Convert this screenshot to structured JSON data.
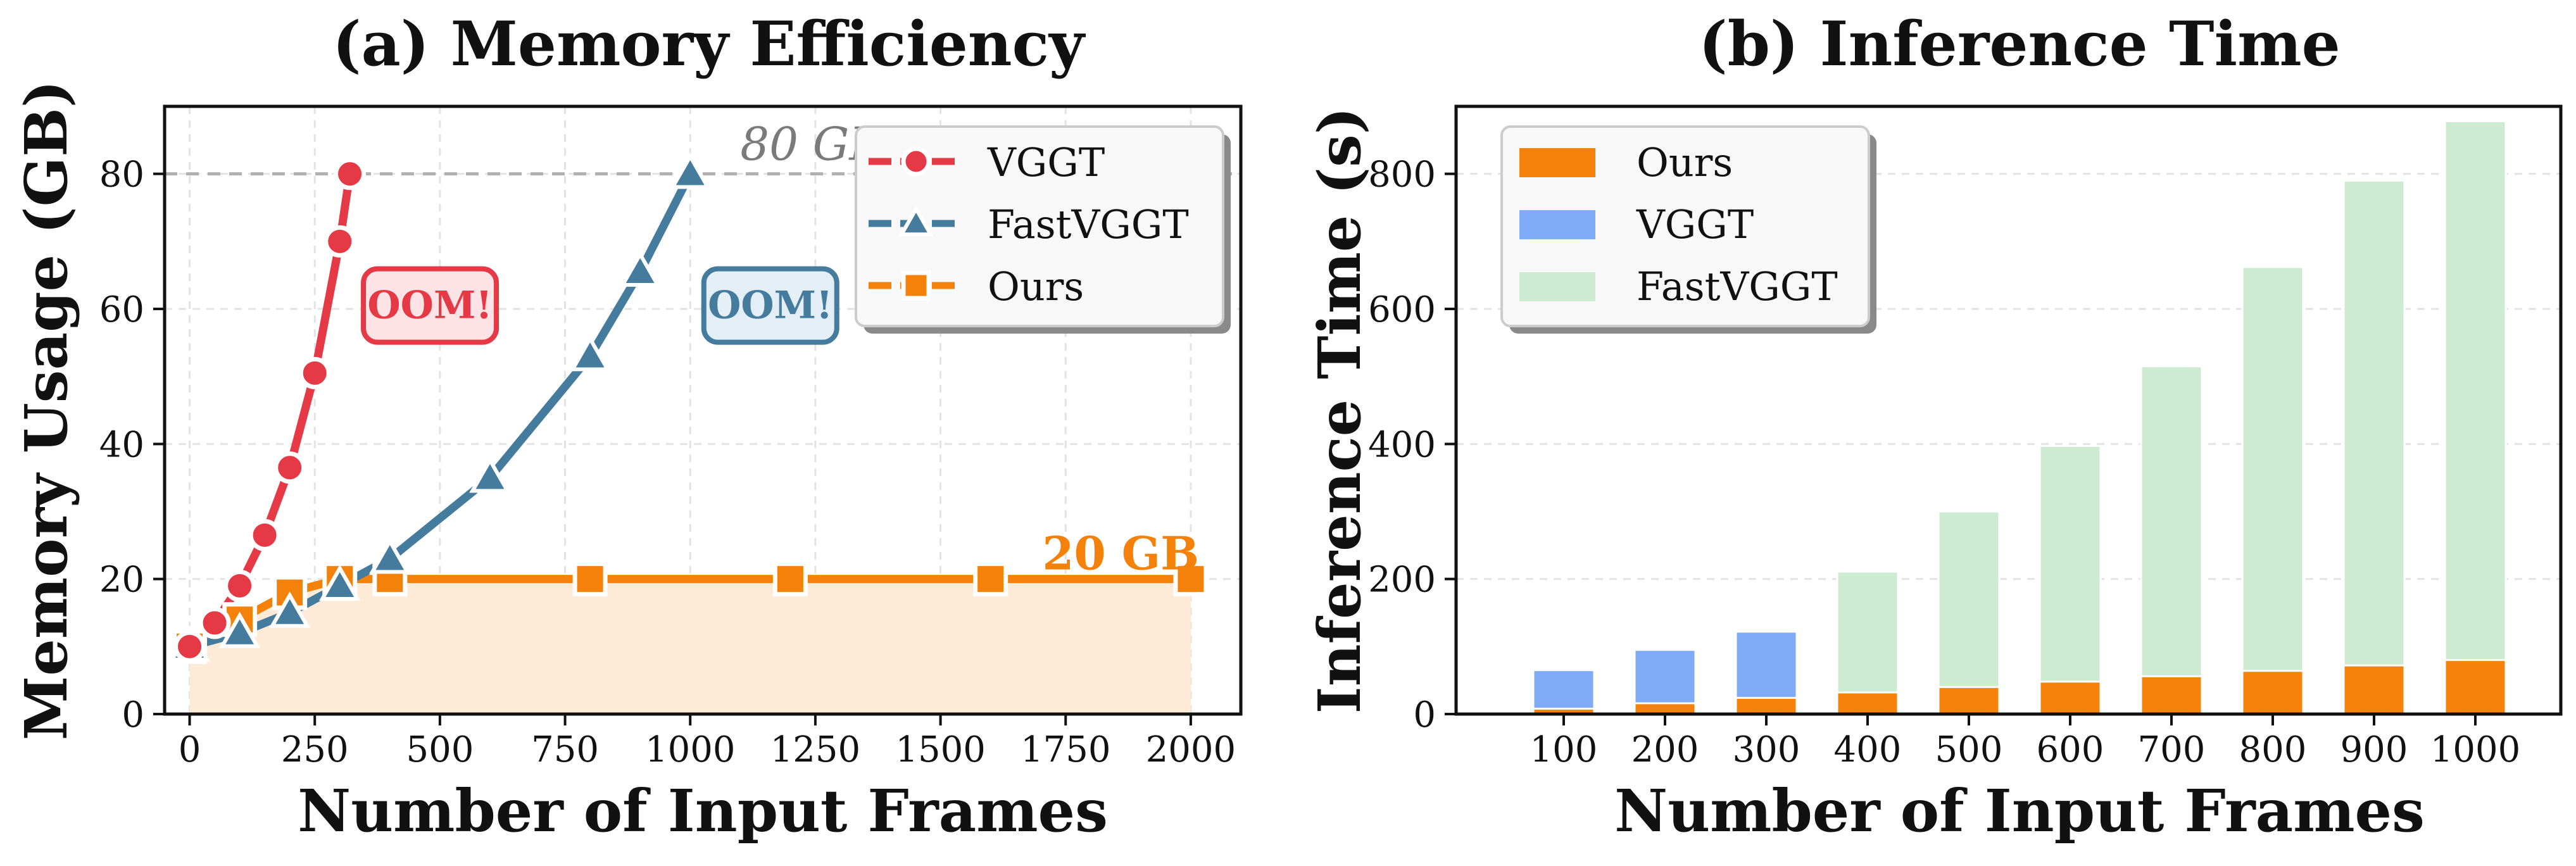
{
  "colors": {
    "vggt": "#e63946",
    "fastvggt": "#457b9d",
    "ours": "#f4820a",
    "vggt_bar": "#7faaf6",
    "fastvggt_bar": "#cdebd1",
    "ours_fill": "#fdebd8",
    "ref_line": "#b0b0b0"
  },
  "chart_data": [
    {
      "type": "line",
      "title": "(a) Memory Efficiency",
      "xlabel": "Number of Input Frames",
      "ylabel": "Memory Usage (GB)",
      "xlim": [
        -50,
        2100
      ],
      "ylim": [
        0,
        90
      ],
      "xticks": [
        0,
        250,
        500,
        750,
        1000,
        1250,
        1500,
        1750,
        2000
      ],
      "yticks": [
        0,
        20,
        40,
        60,
        80
      ],
      "grid": true,
      "legend_position": "top-right",
      "series": [
        {
          "name": "VGGT",
          "marker": "circle",
          "x": [
            0,
            50,
            100,
            150,
            200,
            250,
            300,
            320
          ],
          "y": [
            10,
            13.5,
            19,
            26.5,
            36.5,
            50.5,
            70,
            80
          ]
        },
        {
          "name": "FastVGGT",
          "marker": "triangle",
          "x": [
            0,
            100,
            200,
            300,
            400,
            600,
            800,
            900,
            1000
          ],
          "y": [
            10,
            12,
            15,
            19,
            23,
            35,
            53,
            65.5,
            80
          ]
        },
        {
          "name": "Ours",
          "marker": "square",
          "x": [
            0,
            100,
            200,
            300,
            400,
            800,
            1200,
            1600,
            2000
          ],
          "y": [
            10,
            14,
            18,
            20,
            20,
            20,
            20,
            20,
            20
          ]
        }
      ],
      "annotations": [
        {
          "text": "80 GB",
          "series": "reference",
          "x": 1100,
          "y": 80
        },
        {
          "text": "OOM!",
          "series": "VGGT",
          "x": 480,
          "y": 60.5
        },
        {
          "text": "OOM!",
          "series": "FastVGGT",
          "x": 1160,
          "y": 60.5
        },
        {
          "text": "20 GB",
          "series": "Ours",
          "x": 1860,
          "y": 23.5
        }
      ],
      "reference_line_y": 80
    },
    {
      "type": "bar",
      "title": "(b) Inference Time",
      "xlabel": "Number of Input Frames",
      "ylabel": "Inference Time (s)",
      "ylim": [
        0,
        900
      ],
      "yticks": [
        0,
        200,
        400,
        600,
        800
      ],
      "grid": true,
      "legend_position": "top-left",
      "categories": [
        "100",
        "200",
        "300",
        "400",
        "500",
        "600",
        "700",
        "800",
        "900",
        "1000"
      ],
      "series": [
        {
          "name": "Ours",
          "values": [
            8,
            16,
            24,
            32,
            40,
            48,
            56,
            64,
            72,
            80
          ]
        },
        {
          "name": "VGGT",
          "values": [
            65,
            95,
            122,
            null,
            null,
            null,
            null,
            null,
            null,
            null
          ]
        },
        {
          "name": "FastVGGT",
          "values": [
            null,
            null,
            null,
            211,
            300,
            397,
            515,
            662,
            790,
            878
          ]
        }
      ]
    }
  ]
}
